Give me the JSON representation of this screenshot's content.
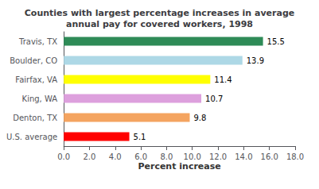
{
  "chart_data": {
    "type": "bar",
    "orientation": "horizontal",
    "title": "Counties with largest percentage increases in average\nannual pay for covered workers, 1998",
    "categories": [
      "Travis, TX",
      "Boulder, CO",
      "Fairfax, VA",
      "King, WA",
      "Denton, TX",
      "U.S. average"
    ],
    "values": [
      15.5,
      13.9,
      11.4,
      10.7,
      9.8,
      5.1
    ],
    "colors": [
      "#2e8b57",
      "#add8e6",
      "#ffff00",
      "#dda0dd",
      "#f4a460",
      "#ff0000"
    ],
    "xlabel": "Percent increase",
    "xlim": [
      0,
      18.0
    ],
    "xticks": [
      {
        "value": 0.0,
        "label": "0.0"
      },
      {
        "value": 2.0,
        "label": "2.0"
      },
      {
        "value": 4.0,
        "label": "4.0"
      },
      {
        "value": 6.0,
        "label": "6.0"
      },
      {
        "value": 8.0,
        "label": "8.0"
      },
      {
        "value": 10.0,
        "label": "10.0"
      },
      {
        "value": 12.0,
        "label": "12.0"
      },
      {
        "value": 14.0,
        "label": "14.0"
      },
      {
        "value": 16.0,
        "label": "16.0"
      },
      {
        "value": 18.0,
        "label": "18.0"
      }
    ],
    "data_labels": true,
    "grid": false
  }
}
